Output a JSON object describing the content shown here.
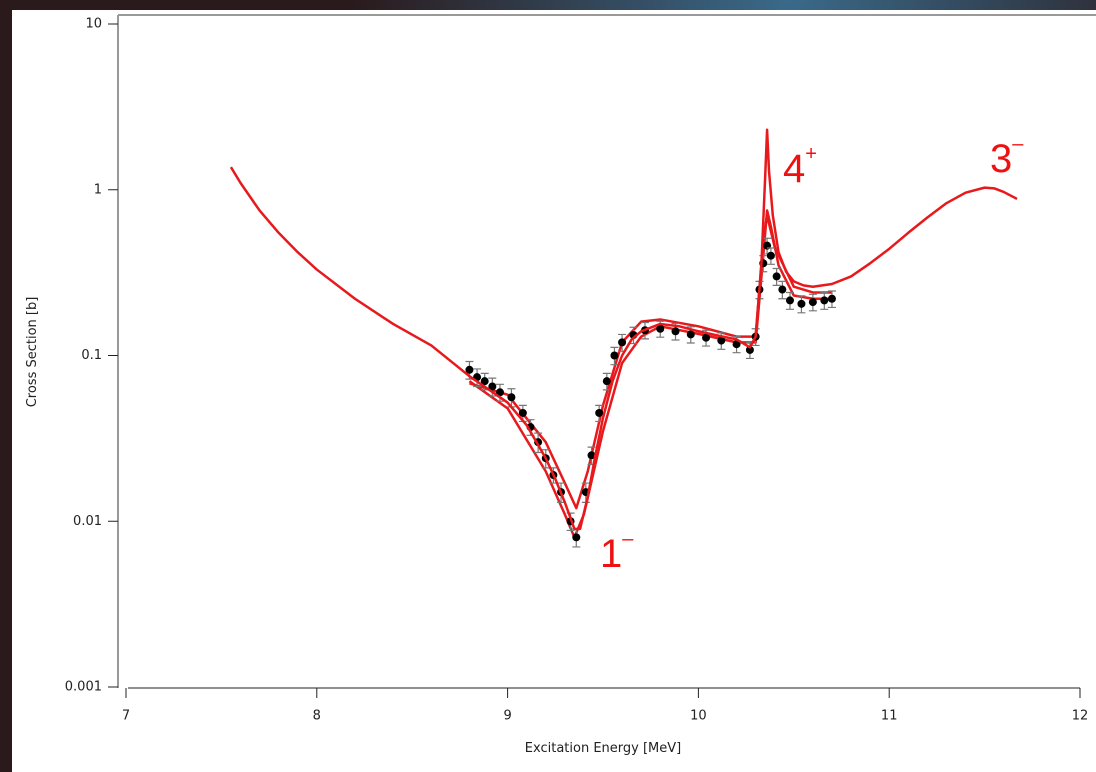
{
  "chart_data": {
    "type": "line",
    "xlabel": "Excitation Energy [MeV]",
    "ylabel": "Cross Section [b]",
    "xlim": [
      7,
      12
    ],
    "xticks": [
      7,
      8,
      9,
      10,
      11,
      12
    ],
    "ylim": [
      0.001,
      10
    ],
    "yticks": [
      0.001,
      0.01,
      0.1,
      1,
      10
    ],
    "yscale": "log",
    "series": [
      {
        "color": "#e8191c",
        "x": [
          8.8,
          9.0,
          9.2,
          9.3,
          9.35,
          9.4,
          9.5,
          9.6,
          9.7,
          9.8,
          10.0,
          10.2,
          10.3,
          10.34,
          10.36,
          10.38,
          10.42,
          10.5,
          10.6,
          10.7
        ],
        "values": [
          0.07,
          0.048,
          0.02,
          0.011,
          0.008,
          0.011,
          0.035,
          0.09,
          0.13,
          0.15,
          0.135,
          0.12,
          0.12,
          0.4,
          0.75,
          0.6,
          0.35,
          0.23,
          0.22,
          0.22
        ]
      },
      {
        "color": "#e8191c",
        "x": [
          8.8,
          9.0,
          9.2,
          9.3,
          9.36,
          9.42,
          9.5,
          9.6,
          9.7,
          9.8,
          10.0,
          10.2,
          10.3,
          10.34,
          10.36,
          10.4,
          10.5,
          10.6,
          10.7
        ],
        "values": [
          0.068,
          0.058,
          0.03,
          0.017,
          0.012,
          0.02,
          0.05,
          0.12,
          0.16,
          0.165,
          0.15,
          0.13,
          0.13,
          0.5,
          0.7,
          0.45,
          0.26,
          0.24,
          0.24
        ]
      },
      {
        "color": "#000000",
        "marker": "o",
        "x": [
          8.8,
          8.84,
          8.88,
          8.92,
          8.96,
          9.02,
          9.08,
          9.12,
          9.16,
          9.2,
          9.24,
          9.28,
          9.33,
          9.36,
          9.41,
          9.44,
          9.48,
          9.52,
          9.56,
          9.6,
          9.66,
          9.72,
          9.8,
          9.88,
          9.96,
          10.04,
          10.12,
          10.2,
          10.27,
          10.3,
          10.32,
          10.34,
          10.36,
          10.38,
          10.41,
          10.44,
          10.48,
          10.54,
          10.6,
          10.66,
          10.7
        ],
        "values": [
          0.082,
          0.074,
          0.07,
          0.065,
          0.06,
          0.056,
          0.045,
          0.037,
          0.03,
          0.024,
          0.019,
          0.015,
          0.01,
          0.008,
          0.015,
          0.025,
          0.045,
          0.07,
          0.1,
          0.12,
          0.133,
          0.142,
          0.145,
          0.14,
          0.134,
          0.128,
          0.123,
          0.117,
          0.108,
          0.13,
          0.25,
          0.36,
          0.46,
          0.4,
          0.3,
          0.25,
          0.215,
          0.205,
          0.21,
          0.215,
          0.22
        ],
        "errors": [
          0.01,
          0.009,
          0.008,
          0.008,
          0.007,
          0.007,
          0.005,
          0.004,
          0.004,
          0.003,
          0.002,
          0.002,
          0.0012,
          0.001,
          0.002,
          0.003,
          0.005,
          0.008,
          0.012,
          0.014,
          0.015,
          0.016,
          0.016,
          0.016,
          0.015,
          0.014,
          0.014,
          0.013,
          0.012,
          0.015,
          0.03,
          0.04,
          0.05,
          0.045,
          0.035,
          0.03,
          0.025,
          0.024,
          0.024,
          0.025,
          0.025
        ]
      },
      {
        "color": "#e8191c",
        "x": [
          7.55,
          7.6,
          7.7,
          7.8,
          7.9,
          8.0,
          8.2,
          8.4,
          8.6,
          8.8,
          9.0,
          9.1,
          9.2,
          9.25,
          9.3,
          9.35,
          9.38,
          9.42,
          9.46,
          9.5,
          9.55,
          9.6,
          9.65,
          9.7,
          9.8,
          9.9,
          10.0,
          10.1,
          10.2,
          10.27,
          10.3,
          10.33,
          10.35,
          10.36,
          10.37,
          10.39,
          10.42,
          10.46,
          10.5,
          10.55,
          10.6,
          10.7,
          10.8,
          10.9,
          11.0,
          11.1,
          11.2,
          11.3,
          11.4,
          11.5,
          11.55,
          11.6,
          11.67
        ],
        "values": [
          1.37,
          1.1,
          0.75,
          0.55,
          0.42,
          0.33,
          0.22,
          0.155,
          0.115,
          0.075,
          0.052,
          0.038,
          0.024,
          0.018,
          0.013,
          0.009,
          0.009,
          0.014,
          0.025,
          0.042,
          0.07,
          0.1,
          0.125,
          0.14,
          0.155,
          0.15,
          0.14,
          0.132,
          0.125,
          0.112,
          0.13,
          0.35,
          1.2,
          2.3,
          1.3,
          0.7,
          0.42,
          0.32,
          0.28,
          0.265,
          0.26,
          0.27,
          0.3,
          0.36,
          0.44,
          0.55,
          0.68,
          0.83,
          0.96,
          1.03,
          1.02,
          0.97,
          0.88
        ]
      }
    ],
    "annotations": [
      {
        "text": "1",
        "sup": "–"
      },
      {
        "text": "4",
        "sup": "+"
      },
      {
        "text": "3",
        "sup": "–"
      }
    ]
  }
}
